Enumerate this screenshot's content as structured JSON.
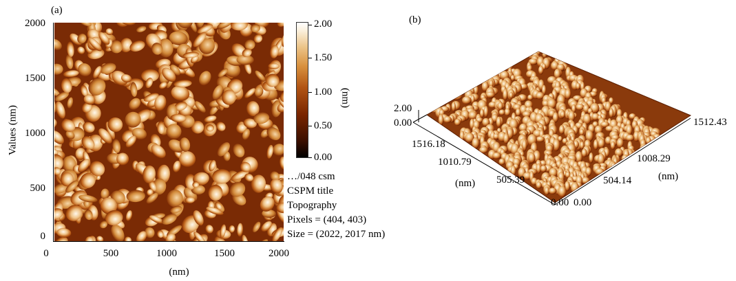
{
  "panel_a": {
    "label": "(a)",
    "y_axis_label": "Values (nm)",
    "x_axis_label": "(nm)",
    "y_ticks": [
      "2000",
      "1500",
      "1000",
      "500",
      "0"
    ],
    "x_ticks": [
      "0",
      "500",
      "1000",
      "1500",
      "2000"
    ],
    "colorbar_ticks": [
      "2.00",
      "1.50",
      "1.00",
      "0.50",
      "0.00"
    ],
    "colorbar_unit": "(nm)",
    "info": [
      "…/048 csm",
      "CSPM title",
      "Topography",
      "Pixels = (404, 403)",
      "Size = (2022, 2017 nm)"
    ],
    "colors": {
      "low": "#000000",
      "mid": "#b25514",
      "high": "#ffffff"
    }
  },
  "panel_b": {
    "label": "(b)",
    "z_labels": [
      "2.00",
      "0.00"
    ],
    "left_axis_ticks": [
      "1516.18",
      "1010.79",
      "505.39",
      "0.00"
    ],
    "left_axis_unit": "(nm)",
    "right_axis_ticks": [
      "1512.43",
      "1008.29",
      "504.14",
      "0.00"
    ],
    "right_axis_unit": "(nm)"
  }
}
